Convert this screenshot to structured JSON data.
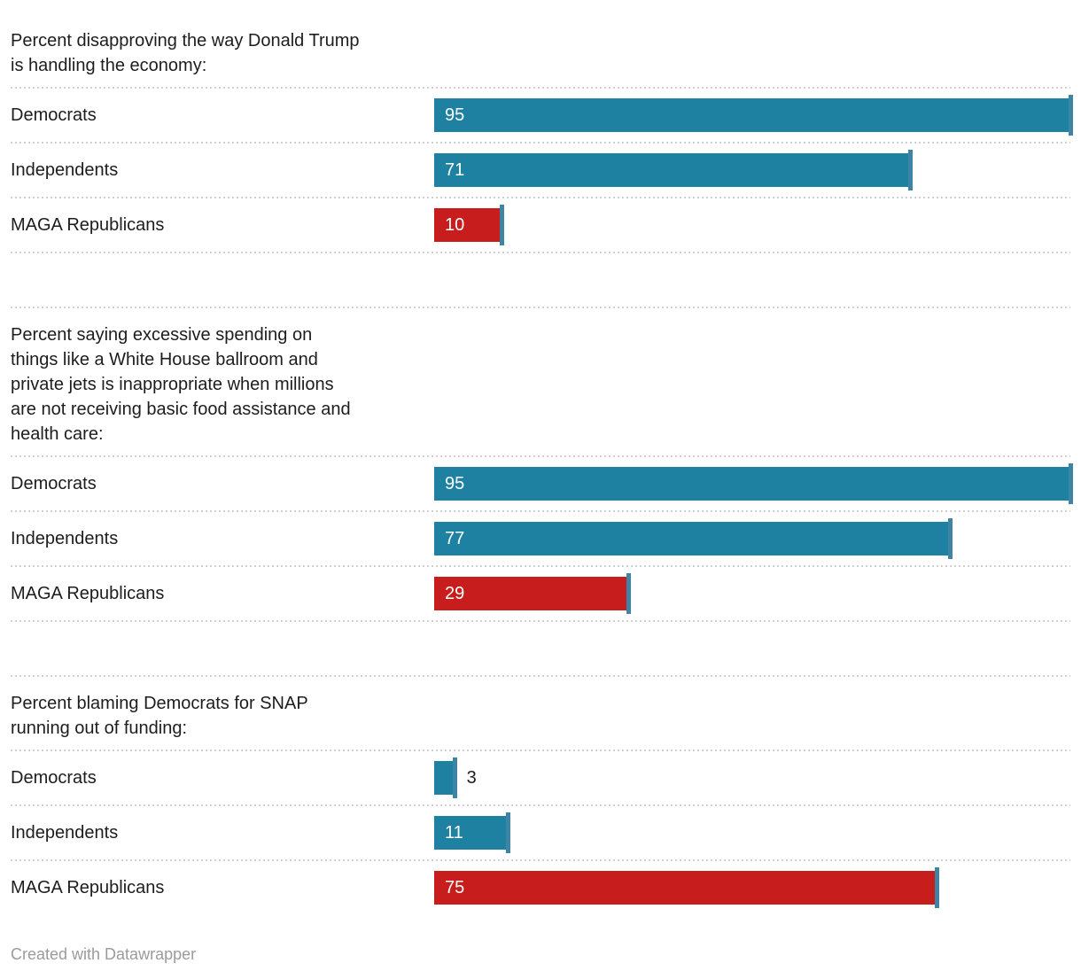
{
  "scale_max": 95,
  "colors": {
    "teal": "#1f81a2",
    "red": "#c71e1d",
    "end_tick": "#3e85a5",
    "grid_dots": "#d0d0d0",
    "title_text": "#1d1d1d",
    "credit_text": "#9b9b9b",
    "value_label_inside": "#ffffff"
  },
  "chart_data": [
    {
      "type": "bar",
      "orientation": "horizontal",
      "title": "Percent disapproving the way Donald Trump\nis handling the economy:",
      "categories": [
        "Democrats",
        "Independents",
        "MAGA Republicans"
      ],
      "values": [
        95,
        71,
        10
      ],
      "bar_colors": [
        "#1f81a2",
        "#1f81a2",
        "#c71e1d"
      ],
      "value_label_positions": [
        "inside",
        "inside",
        "inside"
      ],
      "xlim": [
        0,
        95
      ],
      "grid": "dotted row separators",
      "legend": "none"
    },
    {
      "type": "bar",
      "orientation": "horizontal",
      "title": "Percent saying excessive spending on\nthings like a White House ballroom and\nprivate jets is inappropriate when millions\nare not receiving basic food assistance and\nhealth care:",
      "categories": [
        "Democrats",
        "Independents",
        "MAGA Republicans"
      ],
      "values": [
        95,
        77,
        29
      ],
      "bar_colors": [
        "#1f81a2",
        "#1f81a2",
        "#c71e1d"
      ],
      "value_label_positions": [
        "inside",
        "inside",
        "inside"
      ],
      "xlim": [
        0,
        95
      ],
      "grid": "dotted row separators",
      "legend": "none"
    },
    {
      "type": "bar",
      "orientation": "horizontal",
      "title": "Percent blaming Democrats for SNAP\nrunning out of funding:",
      "categories": [
        "Democrats",
        "Independents",
        "MAGA Republicans"
      ],
      "values": [
        3,
        11,
        75
      ],
      "bar_colors": [
        "#1f81a2",
        "#1f81a2",
        "#c71e1d"
      ],
      "value_label_positions": [
        "outside",
        "inside",
        "inside"
      ],
      "xlim": [
        0,
        95
      ],
      "grid": "dotted row separators",
      "legend": "none"
    }
  ],
  "footer": {
    "credit": "Created with Datawrapper"
  }
}
